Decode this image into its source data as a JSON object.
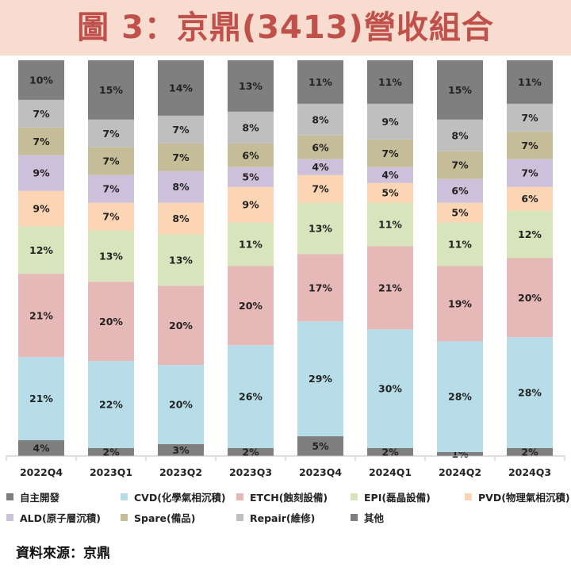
{
  "title": "圖 3：京鼎(3413)營收組合",
  "source": "資料來源：京鼎",
  "chart_data": {
    "type": "bar",
    "stacked": true,
    "normalized_percent": true,
    "categories": [
      "2022Q4",
      "2023Q1",
      "2023Q2",
      "2023Q3",
      "2023Q4",
      "2024Q1",
      "2024Q2",
      "2024Q3"
    ],
    "series": [
      {
        "name": "自主開發",
        "color": "#7f7f7f",
        "values": [
          4,
          2,
          3,
          2,
          5,
          2,
          1,
          2
        ]
      },
      {
        "name": "CVD(化學氣相沉積)",
        "color": "#b7dde8",
        "values": [
          21,
          22,
          20,
          26,
          29,
          30,
          28,
          28
        ]
      },
      {
        "name": "ETCH(蝕刻設備)",
        "color": "#e6b8b7",
        "values": [
          21,
          20,
          20,
          20,
          17,
          21,
          19,
          20
        ]
      },
      {
        "name": "EPI(磊晶設備)",
        "color": "#d8e4bc",
        "values": [
          12,
          13,
          13,
          11,
          13,
          11,
          11,
          12
        ]
      },
      {
        "name": "PVD(物理氣相沉積)",
        "color": "#fcd5b4",
        "values": [
          9,
          7,
          8,
          9,
          7,
          5,
          5,
          6
        ]
      },
      {
        "name": "ALD(原子層沉積)",
        "color": "#ccc0da",
        "values": [
          9,
          7,
          8,
          5,
          4,
          4,
          6,
          7
        ]
      },
      {
        "name": "Spare(備品)",
        "color": "#c4bd97",
        "values": [
          7,
          7,
          7,
          6,
          6,
          7,
          7,
          7
        ]
      },
      {
        "name": "Repair(維修)",
        "color": "#bfbfbf",
        "values": [
          7,
          7,
          7,
          8,
          8,
          9,
          8,
          7
        ]
      },
      {
        "name": "其他",
        "color": "#7f7f7f",
        "values": [
          10,
          15,
          14,
          13,
          11,
          11,
          15,
          11
        ]
      }
    ],
    "data_labels": "percent",
    "ylim": [
      0,
      100
    ],
    "grid": false,
    "legend_position": "bottom"
  }
}
